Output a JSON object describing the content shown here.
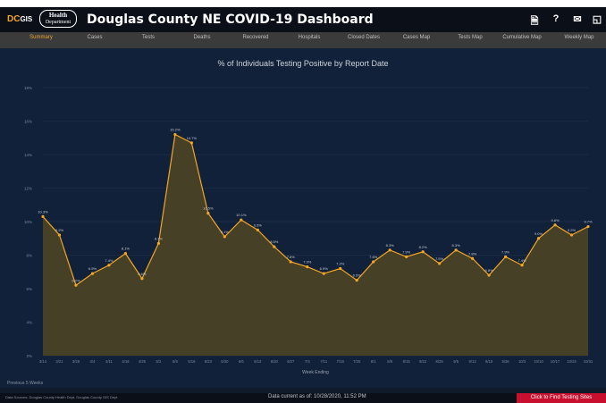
{
  "app": {
    "brand_dc": "DC",
    "brand_gis": "GIS",
    "health_logo_line1": "Health",
    "health_logo_line2": "Department",
    "title": "Douglas County NE COVID-19 Dashboard"
  },
  "top_icons": [
    {
      "name": "document-icon",
      "glyph": "🗎"
    },
    {
      "name": "help-icon",
      "glyph": "?"
    },
    {
      "name": "mail-icon",
      "glyph": "✉"
    },
    {
      "name": "expand-icon",
      "glyph": "◱"
    }
  ],
  "nav": {
    "active_index": 0,
    "tabs": [
      {
        "label": "Summary"
      },
      {
        "label": "Cases"
      },
      {
        "label": "Tests"
      },
      {
        "label": "Deaths"
      },
      {
        "label": "Recovered"
      },
      {
        "label": "Hospitals"
      },
      {
        "label": "Closed Dates"
      },
      {
        "label": "Cases Map"
      },
      {
        "label": "Tests Map"
      },
      {
        "label": "Cumulative Map"
      },
      {
        "label": "Weekly Map"
      }
    ]
  },
  "chart_data": {
    "type": "area",
    "title": "% of Individuals Testing Positive by Report Date",
    "xlabel": "Week Ending",
    "ylabel": "",
    "ylim": [
      2,
      18
    ],
    "yticks": [
      2,
      4,
      6,
      8,
      10,
      12,
      14,
      16,
      18
    ],
    "y_tick_suffix": "%",
    "grid": true,
    "line_color": "#f5a623",
    "fill_color": "#4a4226",
    "x": [
      "3/14",
      "3/21",
      "3/28",
      "4/4",
      "4/11",
      "4/18",
      "4/25",
      "5/2",
      "5/9",
      "5/16",
      "5/23",
      "5/30",
      "6/6",
      "6/13",
      "6/20",
      "6/27",
      "7/4",
      "7/11",
      "7/18",
      "7/25",
      "8/1",
      "8/8",
      "8/15",
      "8/22",
      "8/29",
      "9/5",
      "9/12",
      "9/19",
      "9/26",
      "10/3",
      "10/10",
      "10/17",
      "10/24",
      "10/31"
    ],
    "values": [
      10.3,
      9.2,
      6.2,
      6.9,
      7.4,
      8.1,
      6.6,
      8.7,
      15.2,
      14.7,
      10.5,
      9.1,
      10.1,
      9.5,
      8.5,
      7.6,
      7.3,
      6.9,
      7.2,
      6.5,
      7.6,
      8.3,
      7.9,
      8.2,
      7.5,
      8.3,
      7.8,
      6.8,
      7.9,
      7.4,
      9.0,
      9.8,
      9.2,
      9.7
    ],
    "labels": [
      "10.3%",
      "9.2%",
      "6.2%",
      "6.9%",
      "7.4%",
      "8.1%",
      "6.6%",
      "8.7%",
      "15.2%",
      "14.7%",
      "10.5%",
      "9.1%",
      "10.1%",
      "9.5%",
      "8.5%",
      "7.6%",
      "7.3%",
      "6.9%",
      "7.2%",
      "6.5%",
      "7.6%",
      "8.3%",
      "7.9%",
      "8.2%",
      "7.5%",
      "8.3%",
      "7.8%",
      "6.8%",
      "7.9%",
      "7.4%",
      "9.0%",
      "9.8%",
      "9.2%",
      "9.7%"
    ]
  },
  "footer": {
    "note": "Previous 5 Weeks",
    "sources": "Data Sources: Douglas County Health Dept, Douglas County GIS Dept",
    "updated": "Data current as of: 10/28/2020, 11:52 PM",
    "testing_button": "Click to Find Testing Sites"
  }
}
